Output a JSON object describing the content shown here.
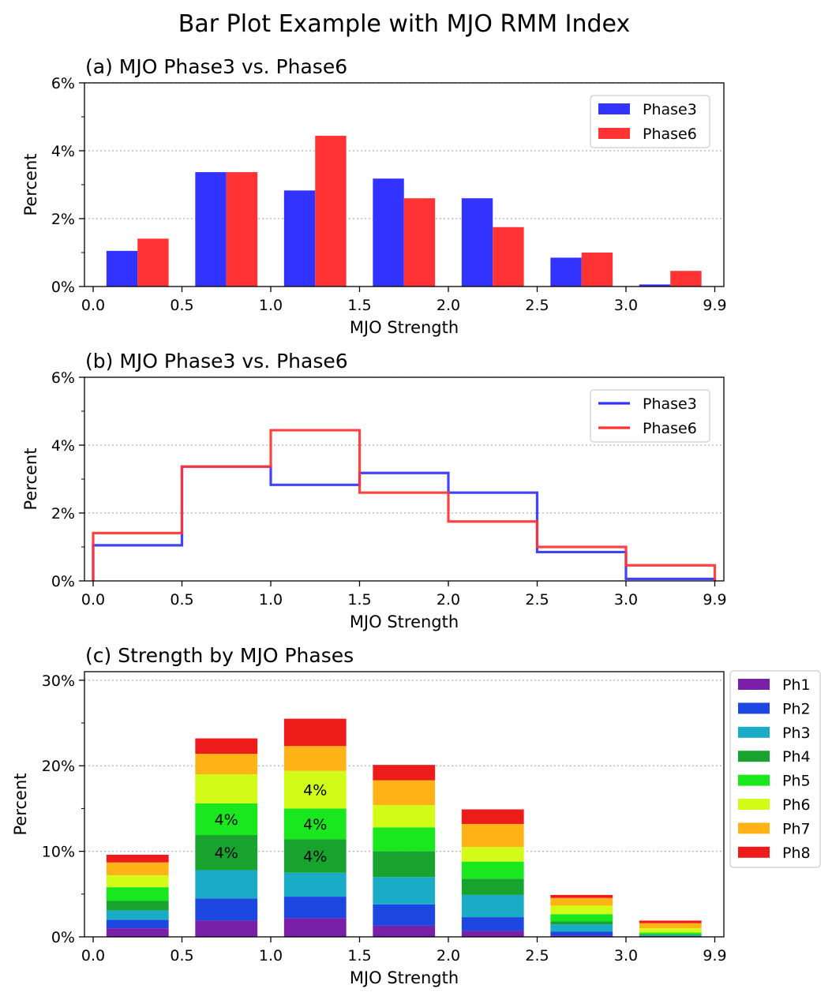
{
  "figure": {
    "title": "Bar Plot Example with MJO RMM Index"
  },
  "chart_data": [
    {
      "type": "bar",
      "title": "(a) MJO Phase3 vs. Phase6",
      "xlabel": "MJO Strength",
      "ylabel": "Percent",
      "bin_edges": [
        "0.0",
        "0.5",
        "1.0",
        "1.5",
        "2.0",
        "2.5",
        "3.0",
        "9.9"
      ],
      "categories": [
        "0.0–0.5",
        "0.5–1.0",
        "1.0–1.5",
        "1.5–2.0",
        "2.0–2.5",
        "2.5–3.0",
        "3.0–9.9"
      ],
      "ylim": [
        0,
        6
      ],
      "yticks": [
        "0%",
        "2%",
        "4%",
        "6%"
      ],
      "grid": "y dotted",
      "legend": "top-right",
      "series": [
        {
          "name": "Phase3",
          "color": "#3333ff",
          "values": [
            1.05,
            3.37,
            2.83,
            3.18,
            2.6,
            0.85,
            0.06
          ]
        },
        {
          "name": "Phase6",
          "color": "#ff3333",
          "values": [
            1.41,
            3.37,
            4.44,
            2.6,
            1.75,
            1.0,
            0.46
          ]
        }
      ]
    },
    {
      "type": "line",
      "title": "(b) MJO Phase3 vs. Phase6",
      "xlabel": "MJO Strength",
      "ylabel": "Percent",
      "bin_edges": [
        "0.0",
        "0.5",
        "1.0",
        "1.5",
        "2.0",
        "2.5",
        "3.0",
        "9.9"
      ],
      "ylim": [
        0,
        6
      ],
      "yticks": [
        "0%",
        "2%",
        "4%",
        "6%"
      ],
      "grid": "y dotted",
      "legend": "top-right",
      "series": [
        {
          "name": "Phase3",
          "color": "#3333ff",
          "values": [
            1.05,
            3.37,
            2.83,
            3.18,
            2.6,
            0.85,
            0.06
          ]
        },
        {
          "name": "Phase6",
          "color": "#ff3333",
          "values": [
            1.41,
            3.37,
            4.44,
            2.6,
            1.75,
            1.0,
            0.46
          ]
        }
      ]
    },
    {
      "type": "bar",
      "stacked": true,
      "title": "(c) Strength by MJO Phases",
      "xlabel": "MJO Strength",
      "ylabel": "Percent",
      "bin_edges": [
        "0.0",
        "0.5",
        "1.0",
        "1.5",
        "2.0",
        "2.5",
        "3.0",
        "9.9"
      ],
      "categories": [
        "0.0–0.5",
        "0.5–1.0",
        "1.0–1.5",
        "1.5–2.0",
        "2.0–2.5",
        "2.5–3.0",
        "3.0–9.9"
      ],
      "ylim": [
        0,
        31
      ],
      "yticks": [
        "0%",
        "10%",
        "20%",
        "30%"
      ],
      "grid": "y dotted",
      "legend": "outside-right",
      "series": [
        {
          "name": "Ph1",
          "color": "#7a1fa8",
          "values": [
            1.0,
            1.9,
            2.2,
            1.3,
            0.7,
            0.15,
            0.05
          ]
        },
        {
          "name": "Ph2",
          "color": "#1c47e0",
          "values": [
            1.0,
            2.6,
            2.5,
            2.5,
            1.6,
            0.45,
            0.05
          ]
        },
        {
          "name": "Ph3",
          "color": "#1aabc6",
          "values": [
            1.1,
            3.3,
            2.8,
            3.2,
            2.6,
            0.85,
            0.1
          ]
        },
        {
          "name": "Ph4",
          "color": "#17a32e",
          "values": [
            1.1,
            4.1,
            3.9,
            3.0,
            1.9,
            0.35,
            0.1
          ]
        },
        {
          "name": "Ph5",
          "color": "#19e81e",
          "values": [
            1.6,
            3.7,
            3.6,
            2.8,
            2.0,
            0.85,
            0.2
          ]
        },
        {
          "name": "Ph6",
          "color": "#d2fb18",
          "values": [
            1.4,
            3.4,
            4.4,
            2.6,
            1.7,
            1.0,
            0.5
          ]
        },
        {
          "name": "Ph7",
          "color": "#ffb317",
          "values": [
            1.5,
            2.4,
            2.9,
            2.9,
            2.7,
            0.9,
            0.6
          ]
        },
        {
          "name": "Ph8",
          "color": "#ee1b1b",
          "values": [
            0.9,
            1.8,
            3.2,
            1.8,
            1.7,
            0.35,
            0.3
          ]
        }
      ],
      "annotations": [
        {
          "bin": 1,
          "series": "Ph4",
          "text": "4%"
        },
        {
          "bin": 1,
          "series": "Ph5",
          "text": "4%"
        },
        {
          "bin": 2,
          "series": "Ph4",
          "text": "4%"
        },
        {
          "bin": 2,
          "series": "Ph5",
          "text": "4%"
        },
        {
          "bin": 2,
          "series": "Ph6",
          "text": "4%"
        }
      ]
    }
  ]
}
